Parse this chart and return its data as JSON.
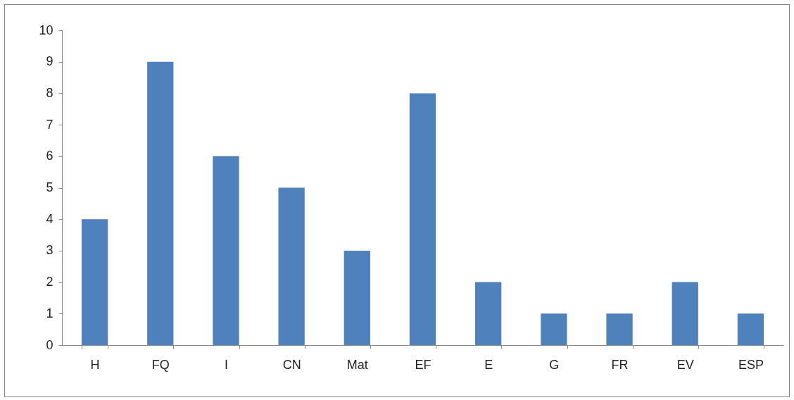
{
  "chart_data": {
    "type": "bar",
    "categories": [
      "H",
      "FQ",
      "I",
      "CN",
      "Mat",
      "EF",
      "E",
      "G",
      "FR",
      "EV",
      "ESP"
    ],
    "values": [
      4,
      9,
      6,
      5,
      3,
      8,
      2,
      1,
      1,
      2,
      1
    ],
    "color": "#4f81bd",
    "ylim": [
      0,
      10
    ],
    "yticks": [
      0,
      1,
      2,
      3,
      4,
      5,
      6,
      7,
      8,
      9,
      10
    ],
    "grid": false
  }
}
